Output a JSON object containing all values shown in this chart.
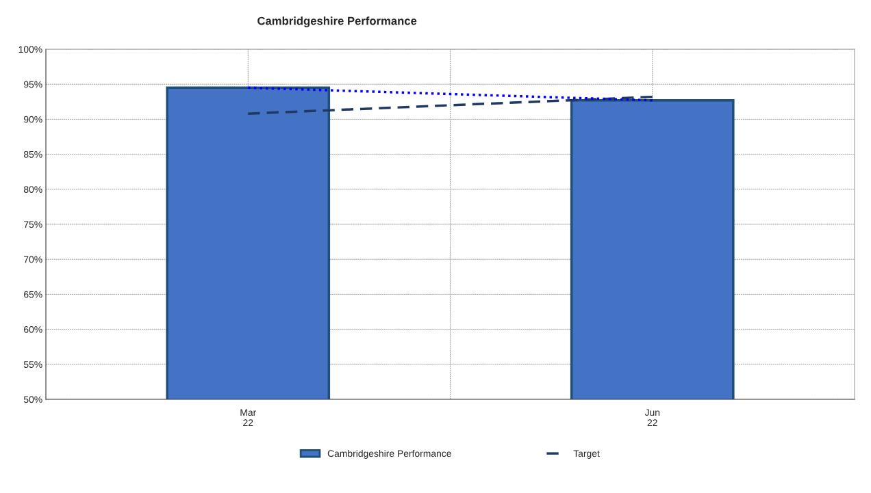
{
  "chart_data": {
    "type": "bar",
    "title": "Cambridgeshire Performance",
    "categories": [
      "Mar\n22",
      "Jun\n22"
    ],
    "series": [
      {
        "name": "Cambridgeshire Performance",
        "color": "#4472c4",
        "values": [
          94.5,
          92.7
        ]
      },
      {
        "name": "Target",
        "type": "line",
        "color": "#1f3864",
        "line_style": "dashed",
        "values": [
          90.8,
          93.2
        ]
      },
      {
        "type": "line",
        "color": "#0000ff",
        "line_style": "dotted",
        "values": [
          94.5,
          92.7
        ]
      }
    ],
    "ylim": [
      50,
      100
    ],
    "yticks": [
      {
        "value": 50,
        "label": "50%"
      },
      {
        "value": 55,
        "label": "55%"
      },
      {
        "value": 60,
        "label": "60%"
      },
      {
        "value": 65,
        "label": "65%"
      },
      {
        "value": 70,
        "label": "70%"
      },
      {
        "value": 75,
        "label": "75%"
      },
      {
        "value": 80,
        "label": "80%"
      },
      {
        "value": 85,
        "label": "85%"
      },
      {
        "value": 90,
        "label": "90%"
      },
      {
        "value": 95,
        "label": "95%"
      },
      {
        "value": 100,
        "label": "100%"
      }
    ],
    "grid": true,
    "legend": "bottom"
  }
}
